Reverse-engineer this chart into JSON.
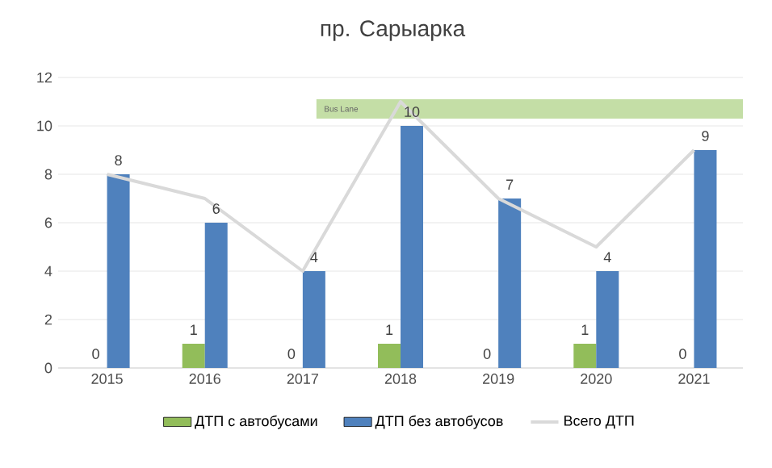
{
  "chart_data": {
    "type": "bar",
    "title": "пр. Сарыарка",
    "categories": [
      "2015",
      "2016",
      "2017",
      "2018",
      "2019",
      "2020",
      "2021"
    ],
    "series": [
      {
        "name": "ДТП с автобусами",
        "color": "#92bd5a",
        "values": [
          0,
          1,
          0,
          1,
          0,
          1,
          0
        ],
        "value_labels": [
          "0",
          "1",
          "0",
          "1",
          "0",
          "1",
          "0"
        ]
      },
      {
        "name": "ДТП без автобусов",
        "color": "#4f81bd",
        "values": [
          8,
          6,
          4,
          10,
          7,
          4,
          9
        ],
        "value_labels": [
          "8",
          "6",
          "4",
          "10",
          "7",
          "4",
          "9"
        ]
      },
      {
        "name": "Всего ДТП",
        "type": "line",
        "color": "#d9d9d9",
        "values": [
          8,
          7,
          4,
          11,
          7,
          5,
          9
        ]
      }
    ],
    "bands": [
      {
        "axis": "y",
        "from": 10.3,
        "to": 11.1,
        "label": "Bus Lane",
        "color": "#c4dea6"
      }
    ],
    "ylim": [
      0,
      12
    ],
    "yticks": [
      0,
      2,
      4,
      6,
      8,
      10,
      12
    ],
    "grid": "y",
    "legend": "bottom",
    "line_style": "solid",
    "marker": "none"
  }
}
